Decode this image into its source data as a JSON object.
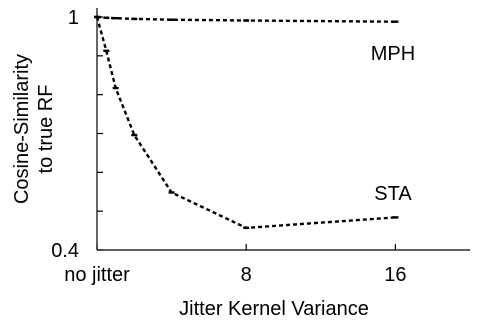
{
  "chart_data": {
    "type": "line",
    "title": "",
    "xlabel": "Jitter Kernel Variance",
    "ylabel_lines": [
      "Cosine-Similarity",
      "to true RF"
    ],
    "x_ticks": [
      {
        "value": 0,
        "label": "no jitter"
      },
      {
        "value": 8,
        "label": "8"
      },
      {
        "value": 16,
        "label": "16"
      }
    ],
    "y_ticks": [
      {
        "value": 1.0,
        "label": "1"
      },
      {
        "value": 0.9,
        "label": ""
      },
      {
        "value": 0.8,
        "label": ""
      },
      {
        "value": 0.7,
        "label": ""
      },
      {
        "value": 0.6,
        "label": ""
      },
      {
        "value": 0.5,
        "label": ""
      },
      {
        "value": 0.4,
        "label": "0.4"
      }
    ],
    "xlim": [
      0,
      20
    ],
    "ylim": [
      0.4,
      1.0
    ],
    "grid": false,
    "series": [
      {
        "name": "MPH",
        "x": [
          0,
          0.5,
          1,
          2,
          4,
          8,
          16
        ],
        "y": [
          1.0,
          0.998,
          0.997,
          0.995,
          0.993,
          0.991,
          0.988
        ]
      },
      {
        "name": "STA",
        "x": [
          0,
          0.5,
          1,
          2,
          4,
          8,
          16
        ],
        "y": [
          1.0,
          0.913,
          0.817,
          0.696,
          0.548,
          0.457,
          0.484
        ]
      }
    ],
    "colors": {
      "line": "#000000",
      "axis": "#000000"
    }
  }
}
